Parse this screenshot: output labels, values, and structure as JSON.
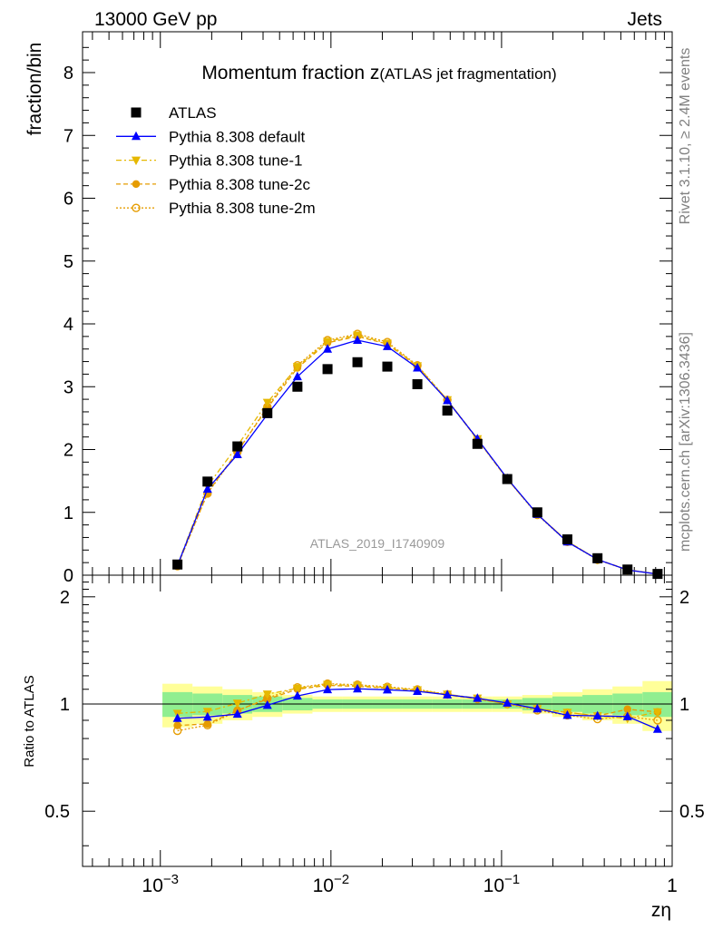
{
  "header": {
    "energy_label": "13000 GeV pp",
    "category_label": "Jets",
    "side_rivet": "Rivet 3.1.10, ≥ 2.4M events",
    "side_source": "mcplots.cern.ch [arXiv:1306.3436]",
    "analysis_id": "ATLAS_2019_I1740909"
  },
  "chart_data": {
    "type": "scatter",
    "title_main": "Momentum fraction z",
    "title_sub": "(ATLAS jet fragmentation)",
    "ylabel": "fraction/bin",
    "ratio_ylabel": "Ratio to ATLAS",
    "xlabel": "zη",
    "xscale": "log",
    "xlim": [
      0.00035,
      1.0
    ],
    "ylim": [
      0,
      8.65
    ],
    "ratio_ylim": [
      0.35,
      2.3
    ],
    "x_tick_labels": [
      {
        "value": 0.001,
        "base": "10",
        "exp": "−3"
      },
      {
        "value": 0.01,
        "base": "10",
        "exp": "−2"
      },
      {
        "value": 0.1,
        "base": "10",
        "exp": "−1"
      },
      {
        "value": 1.0,
        "base": "1",
        "exp": ""
      }
    ],
    "y_ticks": [
      0,
      1,
      2,
      3,
      4,
      5,
      6,
      7,
      8
    ],
    "ratio_ticks": [
      0.5,
      1,
      2
    ],
    "x": [
      0.00126,
      0.00189,
      0.00283,
      0.00424,
      0.00636,
      0.00955,
      0.0143,
      0.0214,
      0.0321,
      0.0481,
      0.0722,
      0.108,
      0.162,
      0.243,
      0.365,
      0.547,
      0.821
    ],
    "ratio_band_inner": [
      0.08,
      0.07,
      0.06,
      0.05,
      0.04,
      0.03,
      0.03,
      0.03,
      0.03,
      0.03,
      0.03,
      0.03,
      0.04,
      0.05,
      0.06,
      0.07,
      0.08
    ],
    "ratio_band_outer": [
      0.14,
      0.12,
      0.1,
      0.08,
      0.06,
      0.05,
      0.05,
      0.05,
      0.05,
      0.05,
      0.05,
      0.05,
      0.06,
      0.08,
      0.1,
      0.12,
      0.16
    ],
    "band_colors": {
      "outer": "#ffff99",
      "inner": "#90ee90"
    },
    "legend_position": "top-left",
    "series": [
      {
        "name": "ATLAS",
        "kind": "data",
        "color": "#000000",
        "marker": "square",
        "dash": "",
        "values": [
          0.17,
          1.49,
          2.05,
          2.58,
          3.0,
          3.28,
          3.39,
          3.32,
          3.04,
          2.62,
          2.09,
          1.53,
          1.0,
          0.57,
          0.27,
          0.09,
          0.02
        ]
      },
      {
        "name": "Pythia 8.308 default",
        "kind": "mc",
        "color": "#0000ff",
        "marker": "triangle-up",
        "dash": "",
        "values": [
          0.155,
          1.37,
          1.92,
          2.56,
          3.16,
          3.6,
          3.74,
          3.64,
          3.3,
          2.78,
          2.17,
          1.54,
          0.97,
          0.53,
          0.25,
          0.083,
          0.017
        ]
      },
      {
        "name": "Pythia 8.308 tune-1",
        "kind": "mc",
        "color": "#e6b800",
        "marker": "triangle-down",
        "dash": "6,3,2,3",
        "values": [
          0.16,
          1.42,
          2.06,
          2.75,
          3.32,
          3.72,
          3.82,
          3.69,
          3.33,
          2.79,
          2.17,
          1.53,
          0.97,
          0.54,
          0.25,
          0.082,
          0.019
        ]
      },
      {
        "name": "Pythia 8.308 tune-2c",
        "kind": "mc",
        "color": "#e69c00",
        "marker": "circle",
        "dash": "5,3",
        "values": [
          0.148,
          1.31,
          1.97,
          2.66,
          3.3,
          3.7,
          3.8,
          3.68,
          3.32,
          2.78,
          2.16,
          1.53,
          0.97,
          0.54,
          0.25,
          0.087,
          0.019
        ]
      },
      {
        "name": "Pythia 8.308 tune-2m",
        "kind": "mc",
        "color": "#e69c00",
        "marker": "circle-open",
        "dash": "2,2",
        "values": [
          0.143,
          1.3,
          1.96,
          2.68,
          3.34,
          3.74,
          3.84,
          3.71,
          3.34,
          2.79,
          2.16,
          1.53,
          0.96,
          0.53,
          0.245,
          0.083,
          0.018
        ]
      }
    ]
  }
}
